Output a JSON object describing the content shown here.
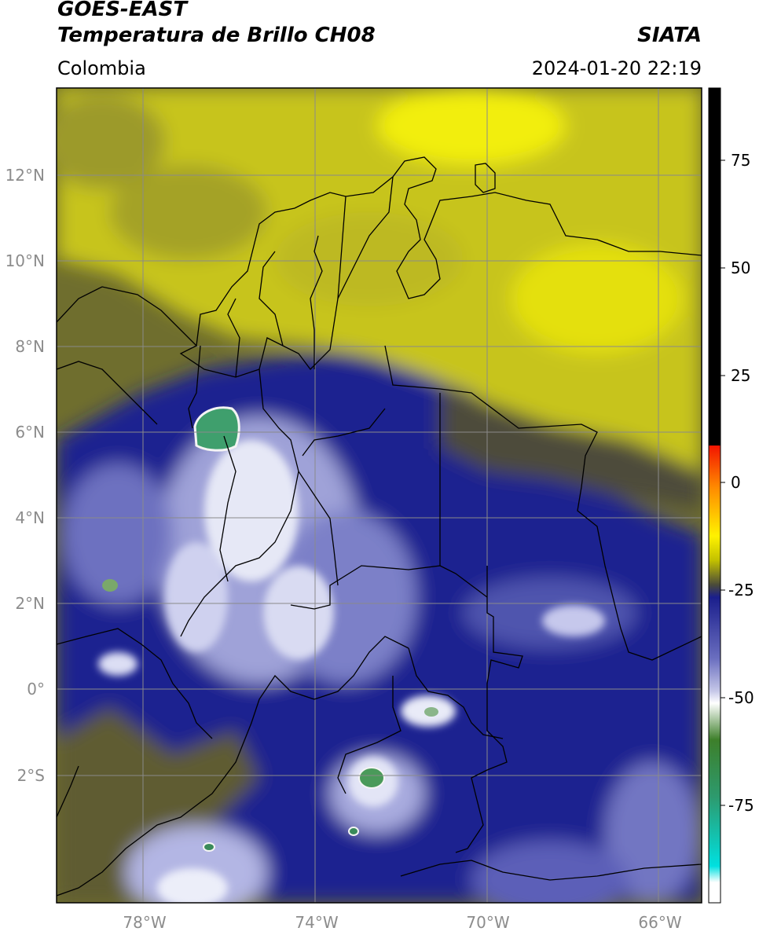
{
  "header": {
    "satellite": "GOES-EAST",
    "product": "Temperatura de Brillo CH08",
    "region": "Colombia",
    "agency": "SIATA",
    "datetime": "2024-01-20 22:19"
  },
  "axes": {
    "lat_labels": [
      "12°N",
      "10°N",
      "8°N",
      "6°N",
      "4°N",
      "2°N",
      "0°",
      "2°S"
    ],
    "lon_labels": [
      "78°W",
      "74°W",
      "70°W",
      "66°W"
    ]
  },
  "colorbar": {
    "ticks": [
      "75",
      "50",
      "25",
      "0",
      "-25",
      "-50",
      "-75"
    ]
  },
  "colors": {
    "dry_air_yellow": "#e6e40a",
    "olive": "#7d7b2a",
    "deep_blue": "#1a1f8a",
    "cloud_white": "#eef0fa",
    "cold_green": "#3aa36a",
    "borders": "#000000",
    "grid": "#8a8a8a"
  }
}
